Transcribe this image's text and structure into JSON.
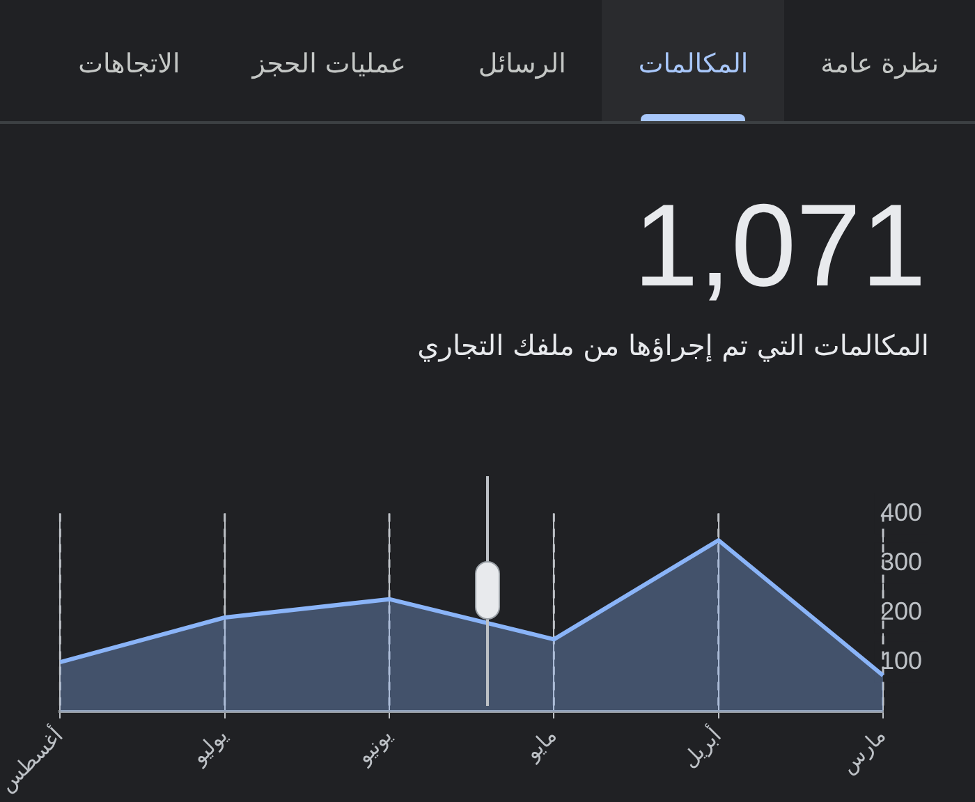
{
  "chart_data": {
    "type": "area",
    "title": "1,071",
    "subtitle": "المكالمات التي تم إجراؤها من ملفك التجاري",
    "annotations": [
      "نظرة عامة",
      "المكالمات",
      "الرسائل",
      "عمليات الحجز",
      "الاتجاهات"
    ],
    "categories": [
      "أغسطس",
      "يوليو",
      "يونيو",
      "مايو",
      "أبريل",
      "مارس"
    ],
    "series": [
      {
        "color": "#8ab4f8",
        "values": [
          100,
          190,
          227,
          146,
          346,
          73
        ]
      }
    ],
    "ylim": [
      0,
      400
    ],
    "yticks": [
      100,
      200,
      300,
      400
    ],
    "grid": "x",
    "legend": false
  }
}
